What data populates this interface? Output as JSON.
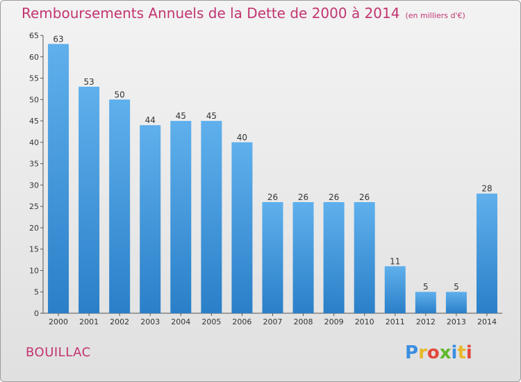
{
  "title": "Remboursements Annuels de la Dette de 2000 à 2014",
  "unit": "(en milliers d'€)",
  "commune": "BOUILLAC",
  "logo_text": "Proxiti",
  "colors": {
    "title": "#c23470",
    "bar_light": "#5fb0ec",
    "bar_dark": "#2a7fc8"
  },
  "chart_data": {
    "type": "bar",
    "title": "Remboursements Annuels de la Dette de 2000 à 2014",
    "xlabel": "",
    "ylabel": "",
    "categories": [
      "2000",
      "2001",
      "2002",
      "2003",
      "2004",
      "2005",
      "2006",
      "2007",
      "2008",
      "2009",
      "2010",
      "2011",
      "2012",
      "2013",
      "2014"
    ],
    "values": [
      63,
      53,
      50,
      44,
      45,
      45,
      40,
      26,
      26,
      26,
      26,
      11,
      5,
      5,
      28
    ],
    "ylim": [
      0,
      65
    ],
    "yticks": [
      0,
      5,
      10,
      15,
      20,
      25,
      30,
      35,
      40,
      45,
      50,
      55,
      60,
      65
    ],
    "grid": false,
    "data_labels": true
  }
}
